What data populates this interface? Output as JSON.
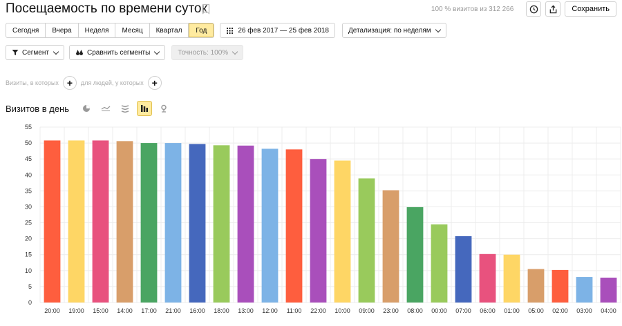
{
  "header": {
    "title": "Посещаемость по времени суток",
    "visits_share": "100 % визитов из 312 266",
    "save_label": "Сохранить"
  },
  "periods": [
    "Сегодня",
    "Вчера",
    "Неделя",
    "Месяц",
    "Квартал",
    "Год"
  ],
  "active_period": "Год",
  "date_range": "26 фев 2017 — 25 фев 2018",
  "detail": "Детализация: по неделям",
  "segment_label": "Сегмент",
  "compare_label": "Сравнить сегменты",
  "accuracy_label": "Точность: 100%",
  "filters": {
    "visits_label": "Визиты, в которых",
    "people_label": "для людей, у которых"
  },
  "chart_title": "Визитов в день",
  "colors": {
    "accent": "#ffeba0",
    "grid": "#ececec",
    "axis_text": "#333333"
  },
  "chart_data": {
    "type": "bar",
    "title": "",
    "xlabel": "",
    "ylabel": "",
    "ylim": [
      0,
      55
    ],
    "yticks": [
      "0",
      "5",
      "10",
      "15",
      "20",
      "25",
      "30",
      "35",
      "40",
      "45",
      "50",
      "55"
    ],
    "grid": true,
    "categories": [
      "20:00",
      "19:00",
      "15:00",
      "14:00",
      "17:00",
      "21:00",
      "16:00",
      "18:00",
      "13:00",
      "12:00",
      "11:00",
      "22:00",
      "10:00",
      "09:00",
      "23:00",
      "08:00",
      "00:00",
      "07:00",
      "06:00",
      "01:00",
      "05:00",
      "02:00",
      "03:00",
      "04:00"
    ],
    "values": [
      50.8,
      50.8,
      50.8,
      50.6,
      50.0,
      50.0,
      49.7,
      49.3,
      49.2,
      48.2,
      48.0,
      45.0,
      44.5,
      38.9,
      35.2,
      29.9,
      24.5,
      20.8,
      15.2,
      15.0,
      10.5,
      10.2,
      8.0,
      7.8
    ],
    "bar_colors": [
      "#fe5e3e",
      "#fed665",
      "#e8527e",
      "#d89e6a",
      "#4aa562",
      "#7db3e6",
      "#4568bd",
      "#99ca5c",
      "#a94fbb",
      "#7db3e6",
      "#fe5e3e",
      "#a94fbb",
      "#fed665",
      "#99ca5c",
      "#d89e6a",
      "#4aa562",
      "#99ca5c",
      "#4568bd",
      "#e8527e",
      "#fed665",
      "#d89e6a",
      "#fe5e3e",
      "#7db3e6",
      "#a94fbb"
    ]
  }
}
